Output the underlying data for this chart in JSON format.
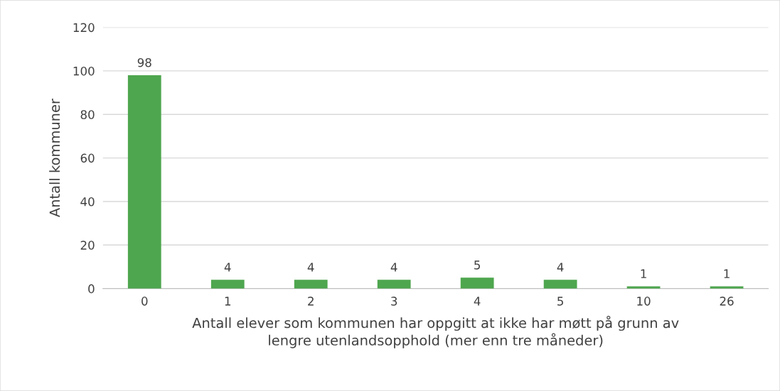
{
  "chart_data": {
    "type": "bar",
    "xlabel": "Antall elever som kommunen har oppgitt at ikke har møtt på grunn av\nlengre utenlandsopphold (mer enn tre måneder)",
    "ylabel": "Antall kommuner",
    "categories": [
      "0",
      "1",
      "2",
      "3",
      "4",
      "5",
      "10",
      "26"
    ],
    "values": [
      98,
      4,
      4,
      4,
      5,
      4,
      1,
      1
    ],
    "color": "#4ea64e",
    "ylim": [
      0,
      120
    ],
    "yticks": [
      0,
      20,
      40,
      60,
      80,
      100,
      120
    ],
    "grid": "y",
    "data_labels": true,
    "legend": false
  }
}
